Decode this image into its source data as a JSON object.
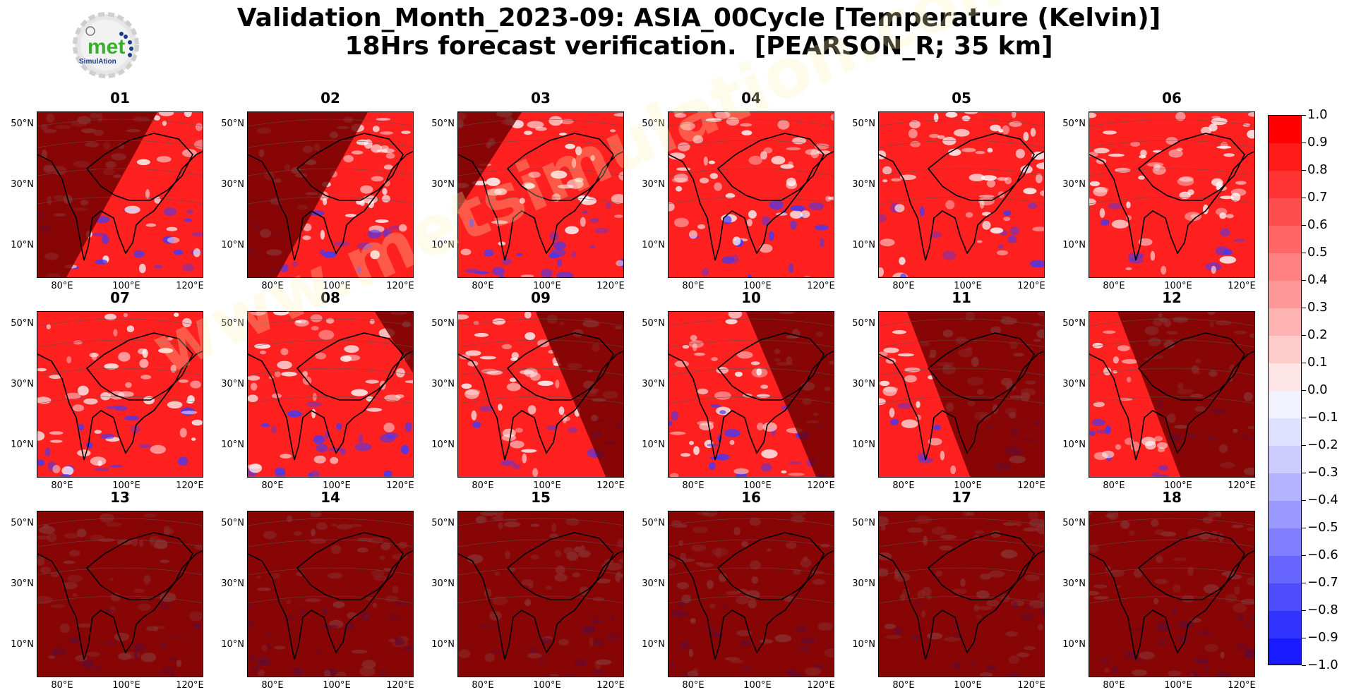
{
  "title": {
    "line1": "Validation_Month_2023-09: ASIA_00Cycle [Temperature (Kelvin)]",
    "line2": "18Hrs forecast verification.  [PEARSON_R; 35 km]"
  },
  "logo": {
    "text": "met",
    "subtext": "SimulAtion"
  },
  "watermark": "www.metsimulation.com",
  "chart_data": {
    "type": "heatmap",
    "metric": "PEARSON_R",
    "panels": [
      {
        "label": "01",
        "shade": "dark-left"
      },
      {
        "label": "02",
        "shade": "dark-left"
      },
      {
        "label": "03",
        "shade": "dark-topleft"
      },
      {
        "label": "04",
        "shade": "none"
      },
      {
        "label": "05",
        "shade": "none"
      },
      {
        "label": "06",
        "shade": "none"
      },
      {
        "label": "07",
        "shade": "none"
      },
      {
        "label": "08",
        "shade": "dark-topright"
      },
      {
        "label": "09",
        "shade": "dark-right"
      },
      {
        "label": "10",
        "shade": "dark-right"
      },
      {
        "label": "11",
        "shade": "dark-most"
      },
      {
        "label": "12",
        "shade": "dark-most"
      },
      {
        "label": "13",
        "shade": "all"
      },
      {
        "label": "14",
        "shade": "all"
      },
      {
        "label": "15",
        "shade": "all"
      },
      {
        "label": "16",
        "shade": "all"
      },
      {
        "label": "17",
        "shade": "all"
      },
      {
        "label": "18",
        "shade": "all"
      }
    ],
    "y_ticks": [
      "50°N",
      "30°N",
      "10°N"
    ],
    "x_ticks": [
      "80°E",
      "100°E",
      "120°E"
    ],
    "colorbar": {
      "ticks": [
        "1.0",
        "0.9",
        "0.8",
        "0.7",
        "0.6",
        "0.5",
        "0.4",
        "0.3",
        "0.2",
        "0.1",
        "0.0",
        "−0.1",
        "−0.2",
        "−0.3",
        "−0.4",
        "−0.5",
        "−0.6",
        "−0.7",
        "−0.8",
        "−0.9",
        "−1.0"
      ],
      "range": [
        -1.0,
        1.0
      ],
      "colors_top_to_bottom": [
        "#ff0000",
        "#ff1a1a",
        "#ff3333",
        "#ff4d4d",
        "#ff6666",
        "#ff8080",
        "#ff9999",
        "#ffb3b3",
        "#ffcccc",
        "#ffe6e6",
        "#f2f2ff",
        "#e0e0ff",
        "#ccccff",
        "#b3b3ff",
        "#9999ff",
        "#8080ff",
        "#6666ff",
        "#4d4dff",
        "#3333ff",
        "#1a1aff"
      ]
    }
  }
}
